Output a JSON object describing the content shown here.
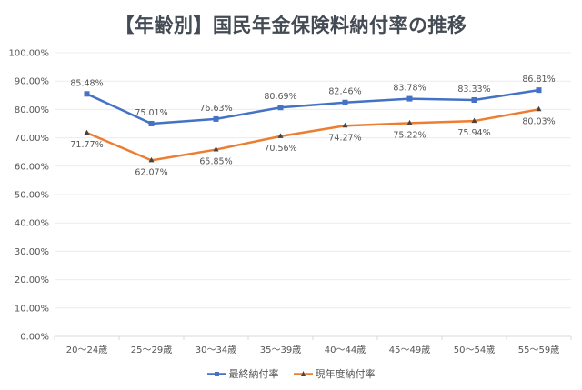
{
  "chart_data": {
    "type": "line",
    "title": "【年齢別】国民年金保険料納付率の推移",
    "categories": [
      "20〜24歳",
      "25〜29歳",
      "30〜34歳",
      "35〜39歳",
      "40〜44歳",
      "45〜49歳",
      "50〜54歳",
      "55〜59歳"
    ],
    "series": [
      {
        "name": "最終納付率",
        "color": "#4472c4",
        "marker": "square",
        "values": [
          85.48,
          75.01,
          76.63,
          80.69,
          82.46,
          83.78,
          83.33,
          86.81
        ]
      },
      {
        "name": "現年度納付率",
        "color": "#ed7d31",
        "marker": "triangle",
        "values": [
          71.77,
          62.07,
          65.85,
          70.56,
          74.27,
          75.22,
          75.94,
          80.03
        ]
      }
    ],
    "ylim": [
      0,
      100
    ],
    "yticks": [
      "0.00%",
      "10.00%",
      "20.00%",
      "30.00%",
      "40.00%",
      "50.00%",
      "60.00%",
      "70.00%",
      "80.00%",
      "90.00%",
      "100.00%"
    ],
    "grid": true,
    "legend": "bottom"
  }
}
